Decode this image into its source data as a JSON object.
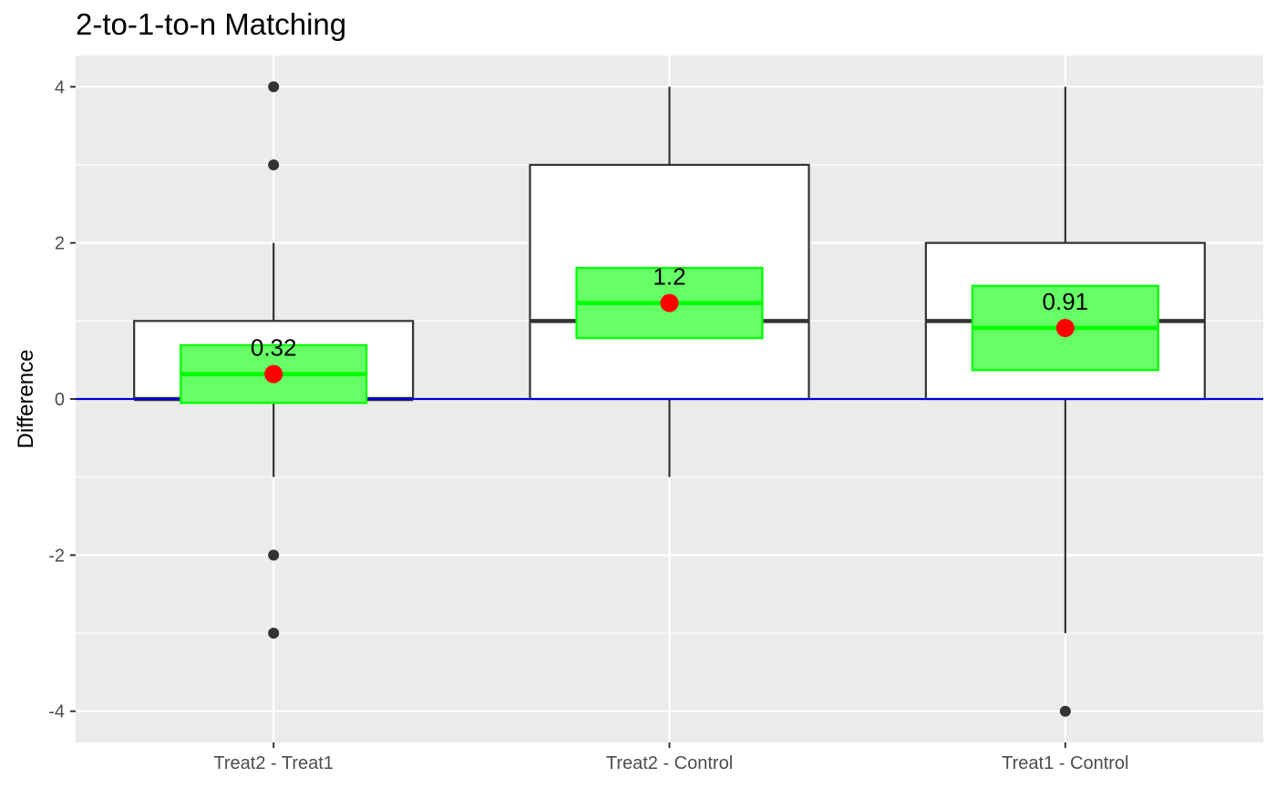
{
  "chart_data": {
    "type": "boxplot",
    "title": "2-to-1-to-n Matching",
    "xlabel": "",
    "ylabel": "Difference",
    "ylim": [
      -4.4,
      4.4
    ],
    "y_ticks": [
      -4,
      -2,
      0,
      2,
      4
    ],
    "y_tick_labels": [
      "-4",
      "-2",
      "0",
      "2",
      "4"
    ],
    "categories": [
      "Treat2 - Treat1",
      "Treat2 - Control",
      "Treat1 - Control"
    ],
    "grid": true,
    "reference_line": {
      "y": 0,
      "color": "#0000dd"
    },
    "boxes": [
      {
        "lower_whisker": -1,
        "q1": 0,
        "median": 0,
        "q3": 1,
        "upper_whisker": 2,
        "outliers": [
          4,
          3,
          -2,
          -3
        ]
      },
      {
        "lower_whisker": -1,
        "q1": 0,
        "median": 1,
        "q3": 3,
        "upper_whisker": 4,
        "outliers": []
      },
      {
        "lower_whisker": -3,
        "q1": 0,
        "median": 1,
        "q3": 2,
        "upper_whisker": 4,
        "outliers": [
          -4
        ]
      }
    ],
    "means": [
      {
        "value": 0.32,
        "label": "0.32",
        "ci_low": -0.05,
        "ci_high": 0.69
      },
      {
        "value": 1.23,
        "label": "1.2",
        "ci_low": 0.78,
        "ci_high": 1.68
      },
      {
        "value": 0.91,
        "label": "0.91",
        "ci_low": 0.37,
        "ci_high": 1.45
      }
    ],
    "colors": {
      "panel_bg": "#ebebeb",
      "grid": "#ffffff",
      "box_fill": "#ffffff",
      "box_stroke": "#333333",
      "ci_fill": "#66ff66",
      "ci_stroke": "#00ff00",
      "mean_point": "#ff0000",
      "outlier": "#333333"
    }
  }
}
